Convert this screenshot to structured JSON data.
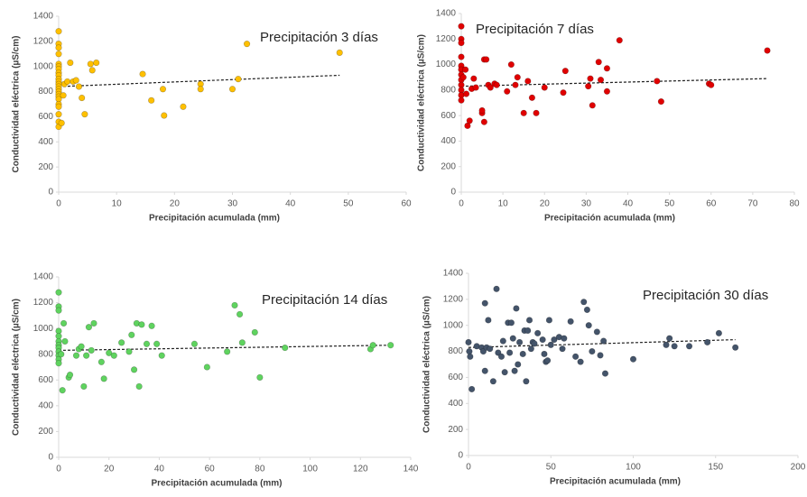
{
  "chart_data": [
    {
      "type": "scatter",
      "title": "Precipitación 3 días",
      "xlabel": "Precipitación acumulada (mm)",
      "ylabel": "Conductividad eléctrica (µS/cm)",
      "color": "#ffc000",
      "x": [
        0,
        0,
        0,
        0,
        0,
        0,
        0,
        0,
        0,
        0,
        0,
        0,
        0,
        0,
        0,
        0,
        0,
        0,
        0,
        0,
        0,
        0,
        0,
        0.5,
        0.8,
        1,
        1.5,
        2,
        2.5,
        3,
        3.5,
        4,
        4.5,
        5.5,
        5.8,
        6.5,
        14.5,
        16,
        18,
        18.2,
        21.5,
        24.5,
        24.5,
        30,
        31,
        32.5,
        48.5
      ],
      "values": [
        1280,
        1180,
        1150,
        1100,
        1020,
        1000,
        980,
        950,
        930,
        900,
        880,
        860,
        840,
        820,
        800,
        780,
        760,
        740,
        700,
        680,
        620,
        560,
        520,
        550,
        770,
        860,
        880,
        1030,
        880,
        890,
        840,
        750,
        620,
        1020,
        970,
        1030,
        940,
        730,
        820,
        610,
        680,
        860,
        820,
        820,
        900,
        1180,
        1110
      ],
      "trendline": {
        "x": [
          0,
          48.5
        ],
        "y": [
          840,
          930
        ]
      },
      "xlim": [
        0,
        60
      ],
      "ylim": [
        0,
        1400
      ],
      "xticks": [
        0,
        10,
        20,
        30,
        40,
        50,
        60
      ],
      "yticks": [
        0,
        200,
        400,
        600,
        800,
        1000,
        1200,
        1400
      ]
    },
    {
      "type": "scatter",
      "title": "Precipitación 7 días",
      "xlabel": "Precipitación acumulada (mm)",
      "ylabel": "Conductividad eléctrica (µS/cm)",
      "color": "#e00000",
      "x": [
        0,
        0,
        0,
        0,
        0,
        0,
        0,
        0,
        0,
        0,
        0,
        0,
        0.5,
        1,
        1.2,
        1.5,
        2,
        2.5,
        3,
        3.5,
        5,
        5,
        5.5,
        5.5,
        6,
        6.5,
        7,
        8,
        8.5,
        11,
        12,
        13,
        13.5,
        15,
        16,
        17,
        18,
        20,
        24.5,
        25,
        30.5,
        31,
        31.5,
        33,
        33.5,
        35,
        35,
        38,
        47,
        48,
        59.5,
        60,
        73.5
      ],
      "values": [
        1300,
        1200,
        1170,
        1060,
        990,
        960,
        920,
        880,
        840,
        800,
        760,
        720,
        900,
        960,
        770,
        520,
        560,
        810,
        890,
        820,
        620,
        640,
        550,
        1040,
        1040,
        840,
        820,
        850,
        840,
        790,
        1000,
        840,
        900,
        620,
        870,
        740,
        620,
        820,
        780,
        950,
        830,
        890,
        680,
        1020,
        880,
        790,
        970,
        1190,
        870,
        710,
        850,
        840,
        1110
      ],
      "trendline": {
        "x": [
          0,
          73.5
        ],
        "y": [
          830,
          890
        ]
      },
      "xlim": [
        0,
        80
      ],
      "ylim": [
        0,
        1400
      ],
      "xticks": [
        0,
        10,
        20,
        30,
        40,
        50,
        60,
        70,
        80
      ],
      "yticks": [
        0,
        200,
        400,
        600,
        800,
        1000,
        1200,
        1400
      ]
    },
    {
      "type": "scatter",
      "title": "Precipitación 14 días",
      "xlabel": "Precipitación acumulada (mm)",
      "ylabel": "Conductividad eléctrica (µS/cm)",
      "color": "#5fd35f",
      "x": [
        0,
        0,
        0,
        0,
        0,
        0,
        0,
        0,
        0,
        0,
        0,
        0,
        1,
        1.5,
        2,
        2.5,
        4,
        4.5,
        7,
        8,
        9,
        10,
        11,
        12,
        13,
        14,
        17,
        18,
        20,
        22,
        25,
        28,
        29,
        30,
        31,
        32,
        33,
        35,
        37,
        39,
        41,
        54,
        59,
        67,
        70,
        72,
        73,
        78,
        80,
        90,
        124,
        125,
        132
      ],
      "values": [
        1280,
        1170,
        1140,
        980,
        940,
        900,
        870,
        850,
        820,
        790,
        760,
        730,
        800,
        520,
        1040,
        900,
        620,
        640,
        790,
        840,
        860,
        550,
        790,
        1010,
        830,
        1040,
        740,
        610,
        810,
        790,
        890,
        820,
        950,
        680,
        1040,
        550,
        1030,
        880,
        1020,
        880,
        790,
        880,
        700,
        820,
        1180,
        1110,
        890,
        970,
        620,
        850,
        840,
        870,
        870
      ],
      "trendline": {
        "x": [
          0,
          132
        ],
        "y": [
          830,
          870
        ]
      },
      "xlim": [
        0,
        140
      ],
      "ylim": [
        0,
        1400
      ],
      "xticks": [
        0,
        20,
        40,
        60,
        80,
        100,
        120,
        140
      ],
      "yticks": [
        0,
        200,
        400,
        600,
        800,
        1000,
        1200,
        1400
      ]
    },
    {
      "type": "scatter",
      "title": "Precipitación 30 días",
      "xlabel": "Precipitación acumulada (mm)",
      "ylabel": "Conductividad eléctrica (µS/cm)",
      "color": "#44546a",
      "x": [
        0,
        0.5,
        1,
        2,
        5,
        8,
        9,
        10,
        10,
        11,
        12,
        13,
        15,
        17,
        18,
        20,
        21,
        22,
        24,
        25,
        26,
        27,
        28,
        29,
        30,
        31,
        33,
        34,
        35,
        36,
        37,
        38,
        39,
        40,
        42,
        45,
        46,
        47,
        48,
        49,
        50,
        52,
        55,
        57,
        58,
        62,
        65,
        68,
        70,
        72,
        73,
        75,
        78,
        80,
        82,
        83,
        100,
        120,
        122,
        125,
        134,
        145,
        152,
        162
      ],
      "values": [
        870,
        800,
        760,
        510,
        840,
        830,
        800,
        1170,
        650,
        830,
        1040,
        820,
        570,
        1280,
        790,
        760,
        880,
        640,
        1020,
        790,
        1020,
        900,
        650,
        1130,
        700,
        870,
        780,
        960,
        570,
        960,
        1040,
        820,
        870,
        860,
        940,
        890,
        780,
        720,
        730,
        1040,
        850,
        890,
        910,
        820,
        900,
        1030,
        760,
        720,
        1180,
        1120,
        1000,
        800,
        950,
        770,
        880,
        630,
        740,
        850,
        900,
        840,
        840,
        870,
        940,
        830
      ],
      "trendline": {
        "x": [
          0,
          162
        ],
        "y": [
          830,
          890
        ]
      },
      "xlim": [
        0,
        200
      ],
      "ylim": [
        0,
        1400
      ],
      "xticks": [
        0,
        50,
        100,
        150,
        200
      ],
      "yticks": [
        0,
        200,
        400,
        600,
        800,
        1000,
        1200,
        1400
      ]
    }
  ]
}
